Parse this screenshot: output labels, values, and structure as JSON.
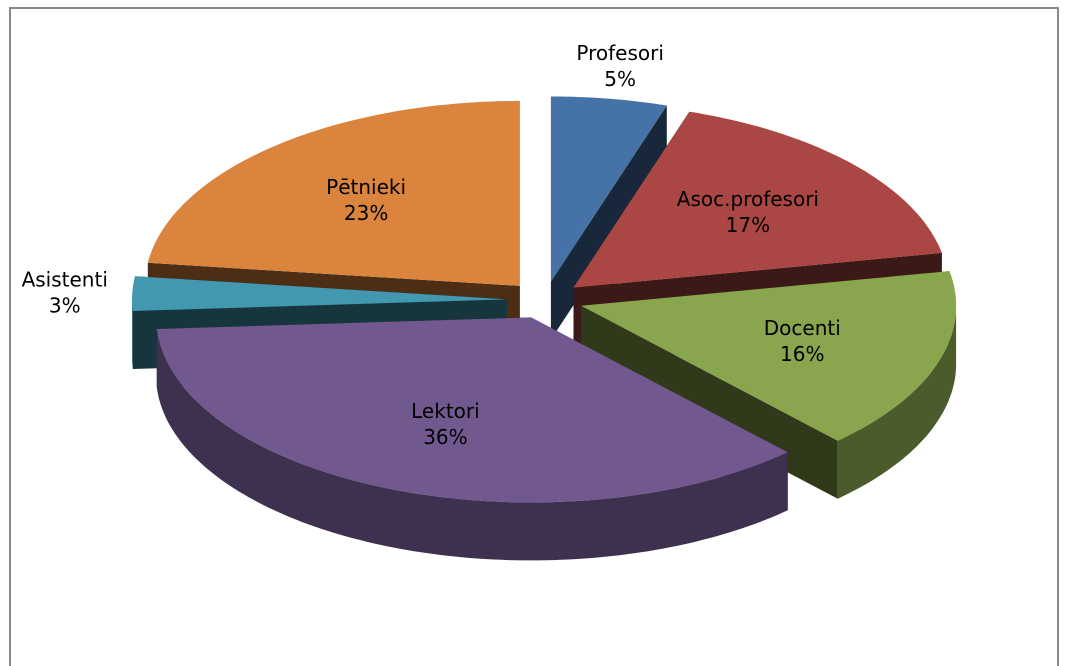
{
  "chart_data": {
    "type": "pie",
    "categories": [
      "Profesori",
      "Asoc.profesori",
      "Docenti",
      "Lektori",
      "Asistenti",
      "Pētnieki"
    ],
    "values": [
      5,
      17,
      16,
      36,
      3,
      23
    ],
    "value_labels": [
      "5%",
      "17%",
      "16%",
      "36%",
      "3%",
      "23%"
    ],
    "colors": [
      "#4572a7",
      "#aa4643",
      "#89a54e",
      "#71588f",
      "#4198af",
      "#db843d"
    ],
    "exploded": true,
    "three_d": true
  }
}
